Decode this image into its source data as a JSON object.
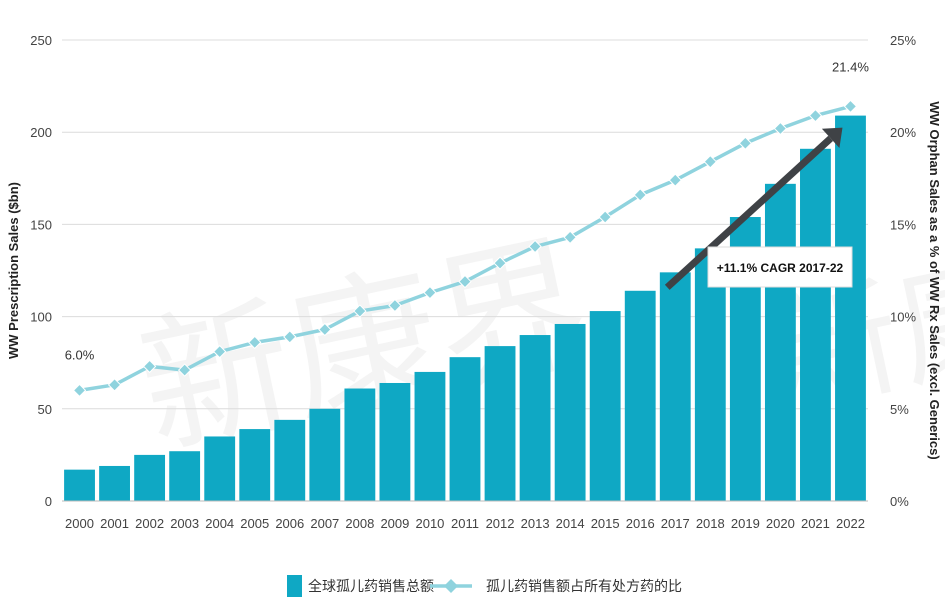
{
  "chart_data": {
    "type": "bar",
    "title": "",
    "xlabel": "",
    "ylabel": "WW Prescription Sales ($bn)",
    "y2label": "WW Orphan Sales as a % of WW Rx Sales (excl. Generics)",
    "ylim": [
      0,
      250
    ],
    "y2lim": [
      0,
      25
    ],
    "yticks": [
      "0",
      "50",
      "100",
      "150",
      "200",
      "250"
    ],
    "y2ticks": [
      "0%",
      "5%",
      "10%",
      "15%",
      "20%",
      "25%"
    ],
    "grid": true,
    "legend_position": "bottom",
    "categories": [
      "2000",
      "2001",
      "2002",
      "2003",
      "2004",
      "2005",
      "2006",
      "2007",
      "2008",
      "2009",
      "2010",
      "2011",
      "2012",
      "2013",
      "2014",
      "2015",
      "2016",
      "2017",
      "2018",
      "2019",
      "2020",
      "2021",
      "2022"
    ],
    "series": [
      {
        "name": "全球孤儿药销售总额",
        "type": "bar",
        "axis": "left",
        "color": "#0fa8c4",
        "values": [
          17,
          19,
          25,
          27,
          35,
          39,
          44,
          50,
          61,
          64,
          70,
          78,
          84,
          90,
          96,
          103,
          114,
          124,
          137,
          154,
          172,
          191,
          209
        ]
      },
      {
        "name": "孤儿药销售额占所有处方药的比",
        "type": "line",
        "axis": "right",
        "color": "#8fd3de",
        "values": [
          6.0,
          6.3,
          7.3,
          7.1,
          8.1,
          8.6,
          8.9,
          9.3,
          10.3,
          10.6,
          11.3,
          11.9,
          12.9,
          13.8,
          14.3,
          15.4,
          16.6,
          17.4,
          18.4,
          19.4,
          20.2,
          20.9,
          21.4
        ]
      }
    ],
    "data_labels": {
      "first": "6.0%",
      "last": "21.4%"
    },
    "annotation": {
      "text": "+11.1% CAGR 2017-22",
      "from_category": "2017",
      "to_category": "2022"
    },
    "watermark": "新康界"
  }
}
